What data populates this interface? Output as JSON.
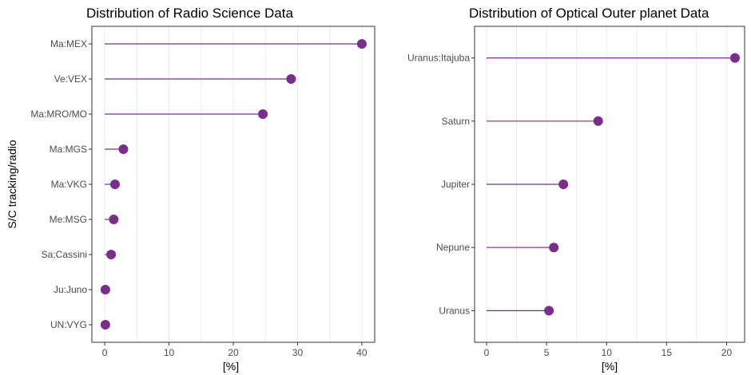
{
  "colors": {
    "accent": "#7b2d8e",
    "frame": "#333333",
    "grid": "#ebebeb",
    "tick_text": "#4d4d4d"
  },
  "chart_data": [
    {
      "type": "lollipop",
      "title": "Distribution of Radio Science Data",
      "xlabel": "[%]",
      "ylabel": "S/C tracking/radio",
      "xlim": [
        -2,
        42
      ],
      "xticks": [
        0,
        10,
        20,
        30,
        40
      ],
      "grid": true,
      "categories": [
        "Ma:MEX",
        "Ve:VEX",
        "Ma:MRO/MO",
        "Ma:MGS",
        "Ma:VKG",
        "Me:MSG",
        "Sa:Cassini",
        "Ju:Juno",
        "UN:VYG"
      ],
      "values": [
        40.0,
        29.0,
        24.6,
        2.9,
        1.6,
        1.4,
        1.0,
        0.1,
        0.1
      ]
    },
    {
      "type": "lollipop",
      "title": "Distribution of Optical Outer planet Data",
      "xlabel": "[%]",
      "ylabel": "",
      "xlim": [
        -1,
        21.5
      ],
      "xticks": [
        0,
        5,
        10,
        15,
        20
      ],
      "grid": true,
      "categories": [
        "Uranus:Itajuba",
        "Saturn",
        "Jupiter",
        "Nepune",
        "Uranus"
      ],
      "values": [
        20.7,
        9.3,
        6.4,
        5.6,
        5.2
      ]
    }
  ]
}
